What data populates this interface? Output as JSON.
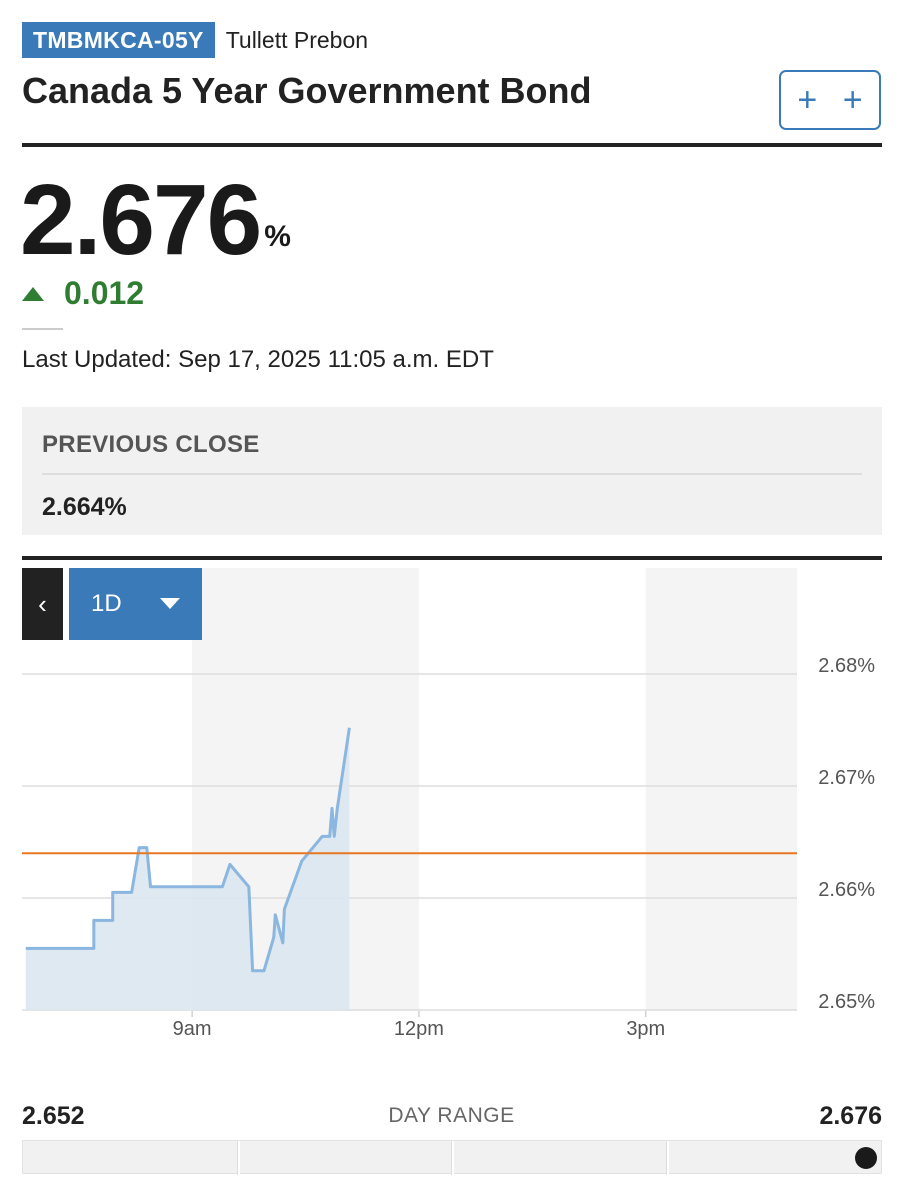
{
  "header": {
    "ticker": "TMBMKCA-05Y",
    "exchange": "Tullett Prebon",
    "title": "Canada 5 Year Government Bond",
    "add_label": "+ +"
  },
  "quote": {
    "price": "2.676",
    "unit": "%",
    "change": "0.012",
    "direction": "up",
    "last_updated": "Last Updated: Sep 17, 2025 11:05 a.m. EDT"
  },
  "previous_close": {
    "label": "PREVIOUS CLOSE",
    "value": "2.664%"
  },
  "chart_controls": {
    "back_label": "‹",
    "period_label": "1D"
  },
  "chart_data": {
    "type": "line",
    "x_axis": {
      "min": 6.75,
      "max": 17.0,
      "ticks": [
        {
          "x": 9,
          "label": "9am"
        },
        {
          "x": 12,
          "label": "12pm"
        },
        {
          "x": 15,
          "label": "3pm"
        }
      ]
    },
    "y_axis": {
      "min": 2.65,
      "max": 2.68,
      "ticks": [
        {
          "y": 2.68,
          "label": "2.68%"
        },
        {
          "y": 2.67,
          "label": "2.67%"
        },
        {
          "y": 2.66,
          "label": "2.66%"
        },
        {
          "y": 2.65,
          "label": "2.65%"
        }
      ],
      "position": "right"
    },
    "previous_close": 2.664,
    "shaded_sessions": [
      [
        9,
        12
      ],
      [
        15,
        17
      ]
    ],
    "series": [
      {
        "values": [
          [
            6.8,
            2.6555
          ],
          [
            7.7,
            2.6555
          ],
          [
            7.7,
            2.658
          ],
          [
            7.95,
            2.658
          ],
          [
            7.95,
            2.6605
          ],
          [
            8.2,
            2.6605
          ],
          [
            8.3,
            2.6645
          ],
          [
            8.4,
            2.6645
          ],
          [
            8.45,
            2.661
          ],
          [
            9.15,
            2.661
          ],
          [
            9.4,
            2.661
          ],
          [
            9.5,
            2.663
          ],
          [
            9.75,
            2.661
          ],
          [
            9.8,
            2.6535
          ],
          [
            9.95,
            2.6535
          ],
          [
            10.08,
            2.6565
          ],
          [
            10.1,
            2.6585
          ],
          [
            10.2,
            2.656
          ],
          [
            10.22,
            2.659
          ],
          [
            10.45,
            2.6633
          ],
          [
            10.72,
            2.6655
          ],
          [
            10.82,
            2.6655
          ],
          [
            10.85,
            2.668
          ],
          [
            10.88,
            2.6655
          ],
          [
            10.92,
            2.668
          ],
          [
            11.08,
            2.6752
          ]
        ],
        "color": "#8ab6e0"
      }
    ],
    "colors": {
      "line": "#8ab6e0",
      "area": "#dce7f1",
      "previous_close": "#e87722",
      "shade": "#f4f4f4",
      "grid": "#dddddd"
    }
  },
  "day_range": {
    "label": "DAY RANGE",
    "low": "2.652",
    "high": "2.676",
    "low_value": 2.652,
    "high_value": 2.676,
    "current_value": 2.676
  }
}
